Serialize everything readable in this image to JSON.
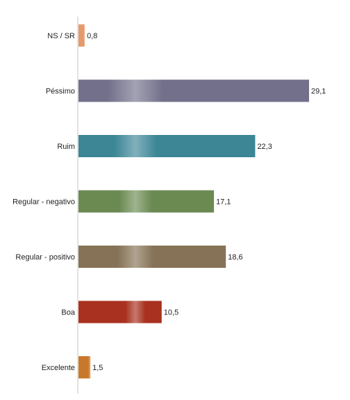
{
  "chart_data": {
    "type": "bar",
    "orientation": "horizontal",
    "categories": [
      "NS / SR",
      "Péssimo",
      "Ruim",
      "Regular - negativo",
      "Regular - positivo",
      "Boa",
      "Excelente"
    ],
    "values": [
      0.8,
      29.1,
      22.3,
      17.1,
      18.6,
      10.5,
      1.5
    ],
    "value_labels": [
      "0,8",
      "29,1",
      "22,3",
      "17,1",
      "18,6",
      "10,5",
      "1,5"
    ],
    "colors": [
      "#e59a6c",
      "#72708a",
      "#3c8696",
      "#6b8a52",
      "#867256",
      "#a8311f",
      "#c8782a"
    ],
    "title": "",
    "xlabel": "",
    "ylabel": "",
    "xlim": [
      0,
      30
    ],
    "grid": false,
    "legend": "none"
  }
}
